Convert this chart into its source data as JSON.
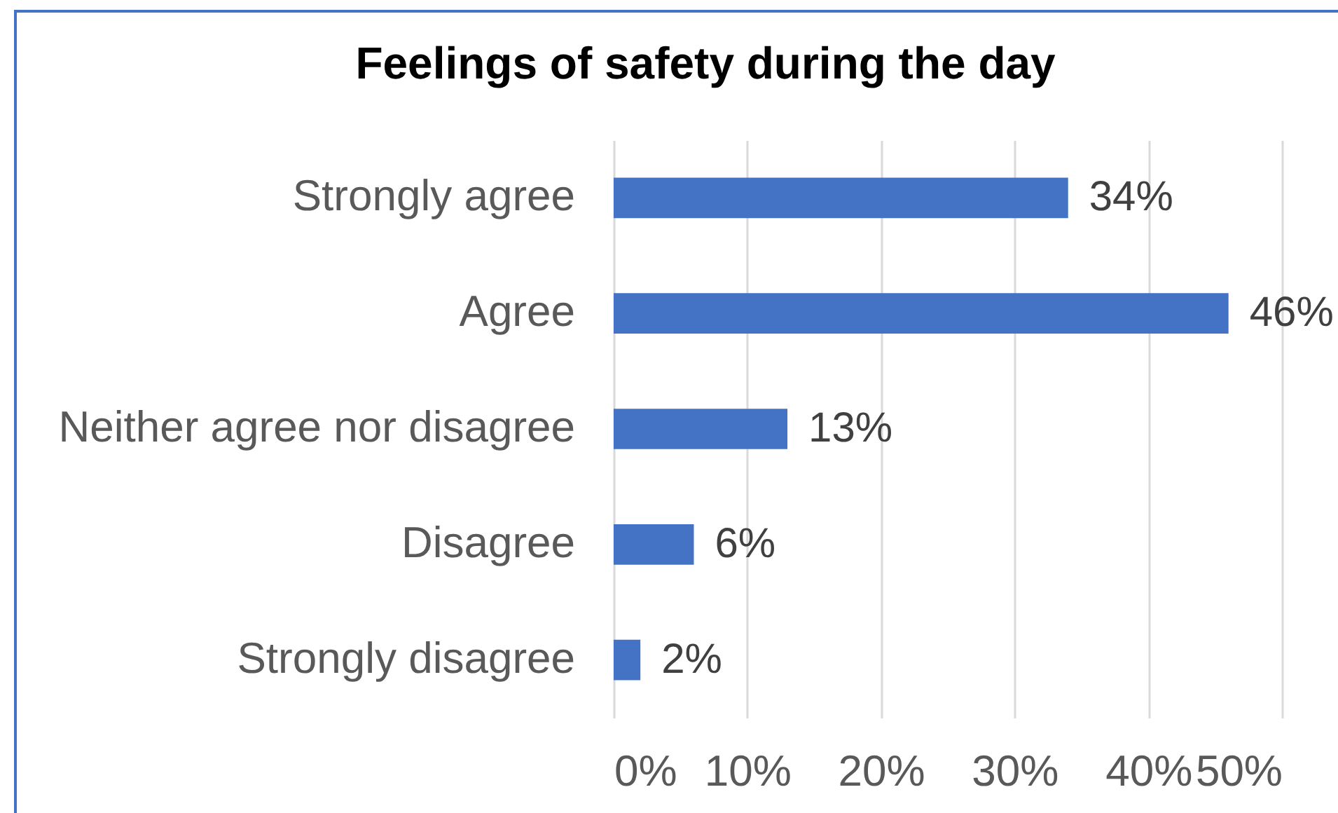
{
  "chart_data": {
    "type": "bar",
    "orientation": "horizontal",
    "title": "Feelings of safety during the day",
    "categories": [
      "Strongly agree",
      "Agree",
      "Neither agree nor disagree",
      "Disagree",
      "Strongly disagree"
    ],
    "values": [
      34,
      46,
      13,
      6,
      2
    ],
    "color": "#4472c4",
    "value_labels": [
      "34%",
      "46%",
      "13%",
      "6%",
      "2%"
    ],
    "xlim": [
      0,
      50
    ],
    "xticks": [
      {
        "value": 0,
        "label": "0%"
      },
      {
        "value": 10,
        "label": "10%"
      },
      {
        "value": 20,
        "label": "20%"
      },
      {
        "value": 30,
        "label": "30%"
      },
      {
        "value": 40,
        "label": "40%"
      },
      {
        "value": 50,
        "label": "50%"
      }
    ],
    "grid": "x"
  }
}
